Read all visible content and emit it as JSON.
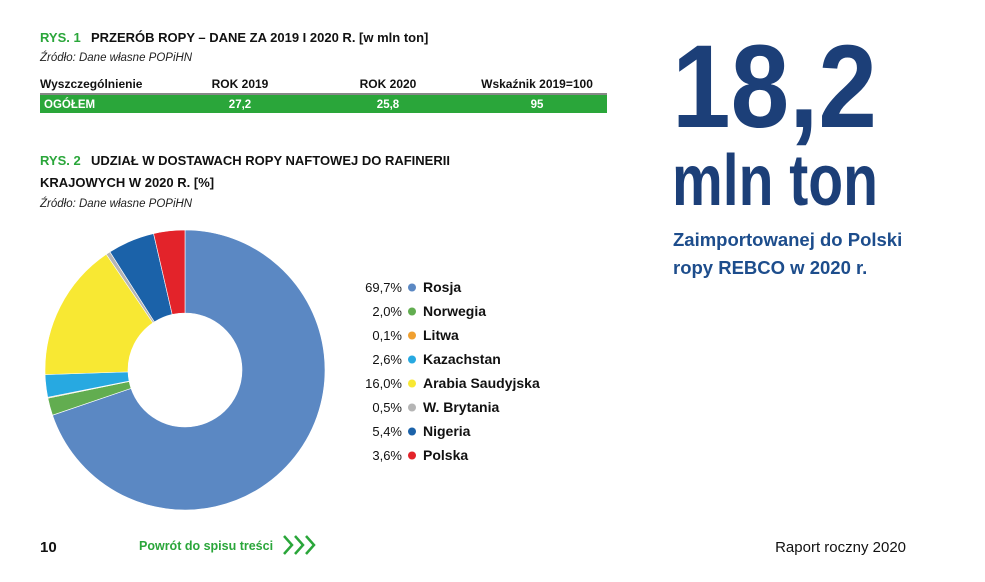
{
  "fig1": {
    "label": "RYS. 1",
    "title": "PRZERÓB ROPY – DANE ZA 2019 I 2020 R. [w mln ton]",
    "source": "Źródło: Dane własne POPiHN"
  },
  "table": {
    "header": [
      "Wyszczególnienie",
      "ROK 2019",
      "ROK 2020",
      "Wskaźnik 2019=100"
    ],
    "rows": [
      [
        "OGÓŁEM",
        "27,2",
        "25,8",
        "95"
      ]
    ]
  },
  "chart_data": {
    "type": "donut",
    "label": "RYS. 2",
    "title": [
      "UDZIAŁ W DOSTAWACH ROPY NAFTOWEJ DO RAFINERII",
      "KRAJOWYCH W 2020 R. [%]"
    ],
    "source": "Źródło: Dane własne POPiHN",
    "categories": [
      "Rosja",
      "Norwegia",
      "Litwa",
      "Kazachstan",
      "Arabia Saudyjska",
      "W. Brytania",
      "Nigeria",
      "Polska"
    ],
    "values": [
      69.7,
      2.0,
      0.1,
      2.6,
      16.0,
      0.5,
      5.4,
      3.6
    ],
    "value_labels": [
      "69,7%",
      "2,0%",
      "0,1%",
      "2,6%",
      "16,0%",
      "0,5%",
      "5,4%",
      "3,6%"
    ],
    "colors": [
      "#5b88c3",
      "#62ad50",
      "#f0a030",
      "#27a9e1",
      "#f8e833",
      "#b5b5b5",
      "#1b62a9",
      "#e3232a"
    ]
  },
  "highlight": {
    "number": "18,2",
    "unit": "mln ton",
    "caption": [
      "Zaimportowanej do Polski",
      "ropy REBCO w 2020 r."
    ]
  },
  "footer": {
    "page": "10",
    "link": "Powrót do spisu treści",
    "report": "Raport roczny 2020"
  }
}
